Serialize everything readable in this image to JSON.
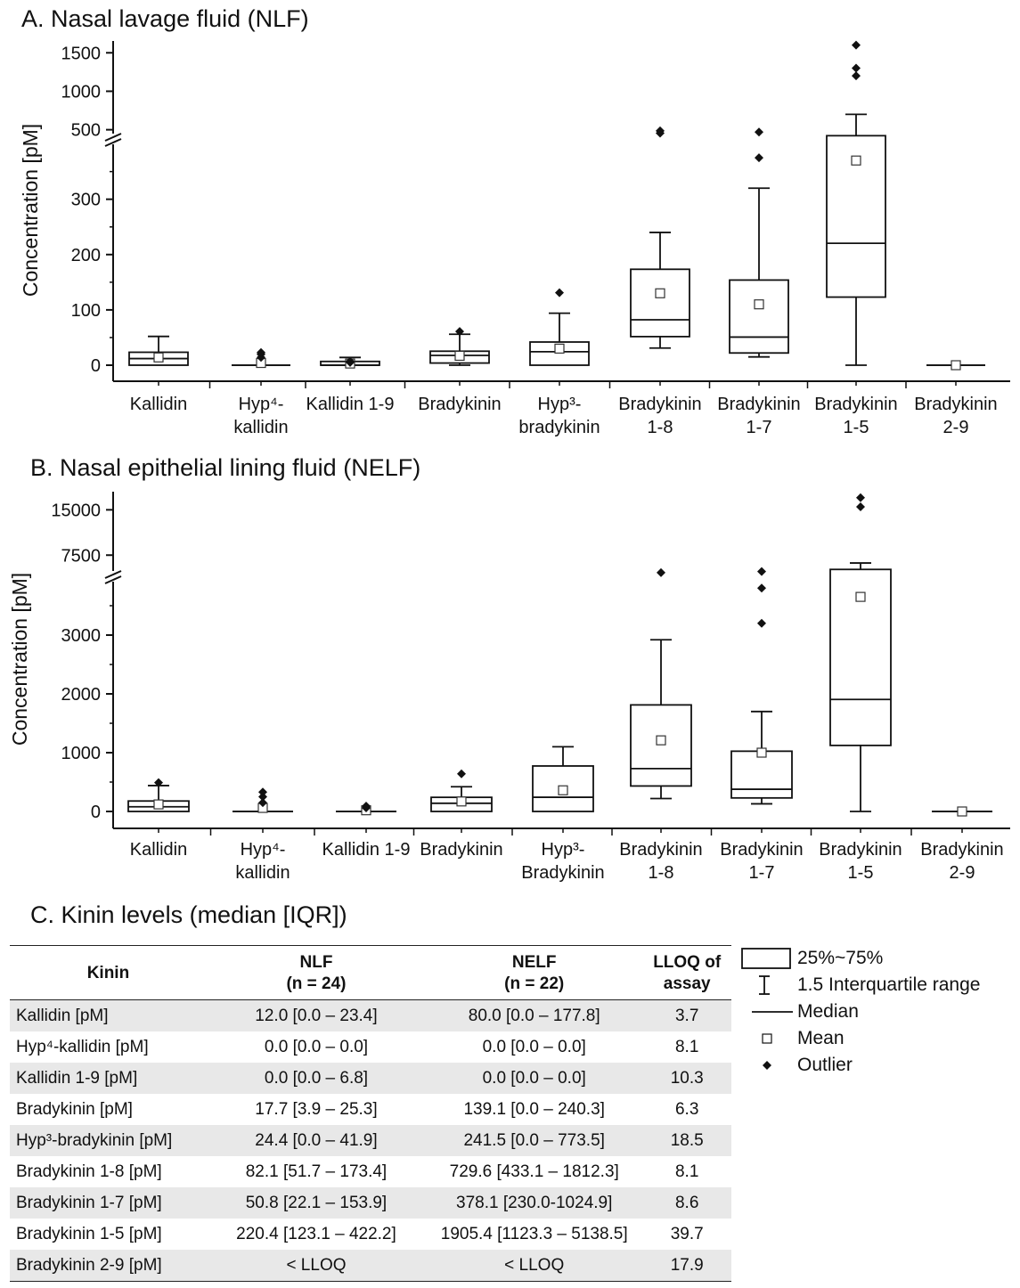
{
  "panels": [
    {
      "title": "A. Nasal lavage fluid (NLF)",
      "ylabel": "Concentration [pM]",
      "lower_ticks": [
        "0",
        "100",
        "200",
        "300"
      ],
      "upper_ticks": [
        "500",
        "1000",
        "1500"
      ],
      "categories": [
        [
          "Kallidin"
        ],
        [
          "Hyp⁴-",
          "kallidin"
        ],
        [
          "Kallidin 1-9"
        ],
        [
          "Bradykinin"
        ],
        [
          "Hyp³-",
          "bradykinin"
        ],
        [
          "Bradykinin",
          "1-8"
        ],
        [
          "Bradykinin",
          "1-7"
        ],
        [
          "Bradykinin",
          "1-5"
        ],
        [
          "Bradykinin",
          "2-9"
        ]
      ]
    },
    {
      "title": "B. Nasal epithelial lining fluid (NELF)",
      "ylabel": "Concentration [pM]",
      "lower_ticks": [
        "0",
        "1000",
        "2000",
        "3000"
      ],
      "upper_ticks": [
        "7500",
        "15000"
      ],
      "categories": [
        [
          "Kallidin"
        ],
        [
          "Hyp⁴-",
          "kallidin"
        ],
        [
          "Kallidin 1-9"
        ],
        [
          "Bradykinin"
        ],
        [
          "Hyp³-",
          "Bradykinin"
        ],
        [
          "Bradykinin",
          "1-8"
        ],
        [
          "Bradykinin",
          "1-7"
        ],
        [
          "Bradykinin",
          "1-5"
        ],
        [
          "Bradykinin",
          "2-9"
        ]
      ]
    }
  ],
  "chart_data": [
    {
      "type": "box",
      "title": "A. Nasal lavage fluid (NLF)",
      "ylabel": "Concentration [pM]",
      "y_axis_break": {
        "lower_range": [
          0,
          380
        ],
        "upper_range": [
          380,
          1700
        ]
      },
      "categories": [
        "Kallidin",
        "Hyp4-kallidin",
        "Kallidin 1-9",
        "Bradykinin",
        "Hyp3-bradykinin",
        "Bradykinin 1-8",
        "Bradykinin 1-7",
        "Bradykinin 1-5",
        "Bradykinin 2-9"
      ],
      "boxes": [
        {
          "whisker_low": 0,
          "q1": 0,
          "median": 12,
          "q3": 23.4,
          "whisker_high": 52,
          "mean": 14,
          "outliers": []
        },
        {
          "whisker_low": 0,
          "q1": 0,
          "median": 0,
          "q3": 0,
          "whisker_high": 0,
          "mean": 4,
          "outliers": [
            14,
            20,
            23
          ]
        },
        {
          "whisker_low": 0,
          "q1": 0,
          "median": 0,
          "q3": 6.8,
          "whisker_high": 14,
          "mean": 3,
          "outliers": [
            5,
            7
          ]
        },
        {
          "whisker_low": 0,
          "q1": 3.9,
          "median": 17.7,
          "q3": 25.3,
          "whisker_high": 56,
          "mean": 17,
          "outliers": [
            61
          ]
        },
        {
          "whisker_low": 0,
          "q1": 0,
          "median": 24.4,
          "q3": 41.9,
          "whisker_high": 94,
          "mean": 30,
          "outliers": [
            131
          ]
        },
        {
          "whisker_low": 31,
          "q1": 51.7,
          "median": 82.1,
          "q3": 173.4,
          "whisker_high": 240,
          "mean": 130,
          "outliers": [
            455,
            485
          ]
        },
        {
          "whisker_low": 15,
          "q1": 22.1,
          "median": 50.8,
          "q3": 153.9,
          "whisker_high": 320,
          "mean": 110,
          "outliers": [
            375,
            470
          ]
        },
        {
          "whisker_low": 0,
          "q1": 123.1,
          "median": 220.4,
          "q3": 422.2,
          "whisker_high": 700,
          "mean": 370,
          "outliers": [
            1200,
            1300,
            1600
          ]
        },
        {
          "whisker_low": 0,
          "q1": 0,
          "median": 0,
          "q3": 0,
          "whisker_high": 0,
          "mean": 0,
          "outliers": []
        }
      ]
    },
    {
      "type": "box",
      "title": "B. Nasal epithelial lining fluid (NELF)",
      "ylabel": "Concentration [pM]",
      "y_axis_break": {
        "lower_range": [
          0,
          4000
        ],
        "upper_range": [
          4000,
          18000
        ]
      },
      "categories": [
        "Kallidin",
        "Hyp4-kallidin",
        "Kallidin 1-9",
        "Bradykinin",
        "Hyp3-Bradykinin",
        "Bradykinin 1-8",
        "Bradykinin 1-7",
        "Bradykinin 1-5",
        "Bradykinin 2-9"
      ],
      "boxes": [
        {
          "whisker_low": 0,
          "q1": 0,
          "median": 80,
          "q3": 177.8,
          "whisker_high": 440,
          "mean": 120,
          "outliers": [
            490
          ]
        },
        {
          "whisker_low": 0,
          "q1": 0,
          "median": 0,
          "q3": 0,
          "whisker_high": 0,
          "mean": 60,
          "outliers": [
            150,
            250,
            330
          ]
        },
        {
          "whisker_low": 0,
          "q1": 0,
          "median": 0,
          "q3": 0,
          "whisker_high": 0,
          "mean": 20,
          "outliers": [
            60,
            90
          ]
        },
        {
          "whisker_low": 0,
          "q1": 0,
          "median": 139.1,
          "q3": 240.3,
          "whisker_high": 420,
          "mean": 170,
          "outliers": [
            640
          ]
        },
        {
          "whisker_low": 0,
          "q1": 0,
          "median": 241.5,
          "q3": 773.5,
          "whisker_high": 1100,
          "mean": 360,
          "outliers": []
        },
        {
          "whisker_low": 220,
          "q1": 433.1,
          "median": 729.6,
          "q3": 1812.3,
          "whisker_high": 2920,
          "mean": 1210,
          "outliers": [
            4600
          ]
        },
        {
          "whisker_low": 130,
          "q1": 230,
          "median": 378.1,
          "q3": 1024.9,
          "whisker_high": 1700,
          "mean": 1000,
          "outliers": [
            3200,
            3800,
            4800
          ]
        },
        {
          "whisker_low": 0,
          "q1": 1123.3,
          "median": 1905.4,
          "q3": 5138.5,
          "whisker_high": 6200,
          "mean": 3650,
          "outliers": [
            15500,
            17000
          ]
        },
        {
          "whisker_low": 0,
          "q1": 0,
          "median": 0,
          "q3": 0,
          "whisker_high": 0,
          "mean": 0,
          "outliers": []
        }
      ]
    }
  ],
  "table": {
    "title": "C. Kinin levels (median [IQR])",
    "headers": {
      "kinin": "Kinin",
      "nlf": [
        "NLF",
        "(n = 24)"
      ],
      "nelf": [
        "NELF",
        "(n = 22)"
      ],
      "lloq": [
        "LLOQ of",
        "assay"
      ]
    },
    "rows": [
      [
        "Kallidin [pM]",
        "12.0 [0.0 – 23.4]",
        "80.0 [0.0 – 177.8]",
        "3.7"
      ],
      [
        "Hyp⁴-kallidin [pM]",
        "0.0 [0.0 – 0.0]",
        "0.0 [0.0 – 0.0]",
        "8.1"
      ],
      [
        "Kallidin 1-9 [pM]",
        "0.0 [0.0 – 6.8]",
        "0.0 [0.0 – 0.0]",
        "10.3"
      ],
      [
        "Bradykinin [pM]",
        "17.7 [3.9 – 25.3]",
        "139.1 [0.0 – 240.3]",
        "6.3"
      ],
      [
        "Hyp³-bradykinin [pM]",
        "24.4 [0.0 – 41.9]",
        "241.5 [0.0 – 773.5]",
        "18.5"
      ],
      [
        "Bradykinin 1-8 [pM]",
        "82.1 [51.7 – 173.4]",
        "729.6 [433.1 – 1812.3]",
        "8.1"
      ],
      [
        "Bradykinin 1-7 [pM]",
        "50.8 [22.1 – 153.9]",
        "378.1 [230.0-1024.9]",
        "8.6"
      ],
      [
        "Bradykinin 1-5 [pM]",
        "220.4 [123.1 – 422.2]",
        "1905.4 [1123.3 – 5138.5]",
        "39.7"
      ],
      [
        "Bradykinin 2-9 [pM]",
        "< LLOQ",
        "< LLOQ",
        "17.9"
      ]
    ]
  },
  "legend": {
    "box": "25%~75%",
    "whisker": "1.5 Interquartile range",
    "median": "Median",
    "mean": "Mean",
    "outlier": "Outlier"
  }
}
